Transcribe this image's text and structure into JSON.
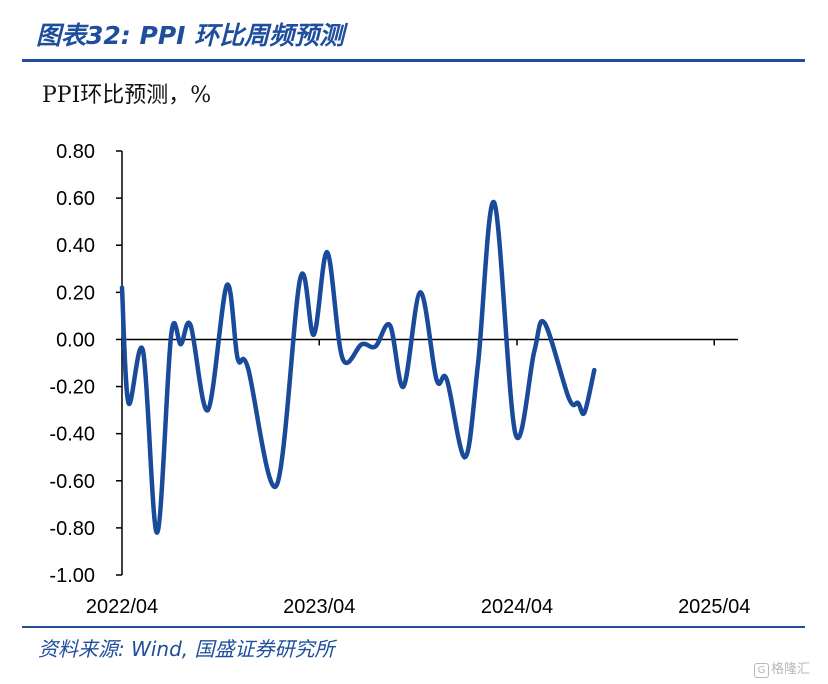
{
  "header": {
    "title": "图表32:  PPI 环比周频预测"
  },
  "footer": {
    "source": "资料来源:  Wind,  国盛证券研究所",
    "watermark": "格隆汇"
  },
  "colors": {
    "accent": "#1f4e9c",
    "line": "#1a4a9a",
    "axis": "#000000"
  },
  "chart_data": {
    "type": "line",
    "ylabel": "PPI环比预测，%",
    "ylim": [
      -1.0,
      0.8
    ],
    "yticks": [
      "0.80",
      "0.60",
      "0.40",
      "0.20",
      "0.00",
      "-0.20",
      "-0.40",
      "-0.60",
      "-0.80",
      "-1.00"
    ],
    "xticks": [
      "2022/04",
      "2023/04",
      "2024/04",
      "2025/04"
    ],
    "xlim": [
      "2022-04-01",
      "2025-05-15"
    ],
    "grid": false,
    "series": [
      {
        "values": [
          {
            "x": "2022-04-01",
            "y": 0.22
          },
          {
            "x": "2022-04-13",
            "y": -0.27
          },
          {
            "x": "2022-05-10",
            "y": -0.05
          },
          {
            "x": "2022-06-05",
            "y": -0.82
          },
          {
            "x": "2022-07-01",
            "y": 0.02
          },
          {
            "x": "2022-07-19",
            "y": -0.02
          },
          {
            "x": "2022-08-06",
            "y": 0.06
          },
          {
            "x": "2022-09-07",
            "y": -0.3
          },
          {
            "x": "2022-10-12",
            "y": 0.23
          },
          {
            "x": "2022-11-01",
            "y": -0.08
          },
          {
            "x": "2022-11-20",
            "y": -0.12
          },
          {
            "x": "2023-01-12",
            "y": -0.62
          },
          {
            "x": "2023-02-25",
            "y": 0.26
          },
          {
            "x": "2023-03-22",
            "y": 0.02
          },
          {
            "x": "2023-04-16",
            "y": 0.37
          },
          {
            "x": "2023-05-14",
            "y": -0.08
          },
          {
            "x": "2023-06-19",
            "y": -0.02
          },
          {
            "x": "2023-07-14",
            "y": -0.03
          },
          {
            "x": "2023-08-10",
            "y": 0.06
          },
          {
            "x": "2023-09-04",
            "y": -0.2
          },
          {
            "x": "2023-10-05",
            "y": 0.2
          },
          {
            "x": "2023-11-04",
            "y": -0.17
          },
          {
            "x": "2023-11-23",
            "y": -0.17
          },
          {
            "x": "2023-12-27",
            "y": -0.5
          },
          {
            "x": "2024-01-20",
            "y": -0.1
          },
          {
            "x": "2024-02-19",
            "y": 0.58
          },
          {
            "x": "2024-03-29",
            "y": -0.4
          },
          {
            "x": "2024-05-03",
            "y": -0.05
          },
          {
            "x": "2024-05-22",
            "y": 0.07
          },
          {
            "x": "2024-07-06",
            "y": -0.25
          },
          {
            "x": "2024-07-23",
            "y": -0.27
          },
          {
            "x": "2024-08-04",
            "y": -0.31
          },
          {
            "x": "2024-08-22",
            "y": -0.13
          }
        ]
      }
    ]
  }
}
